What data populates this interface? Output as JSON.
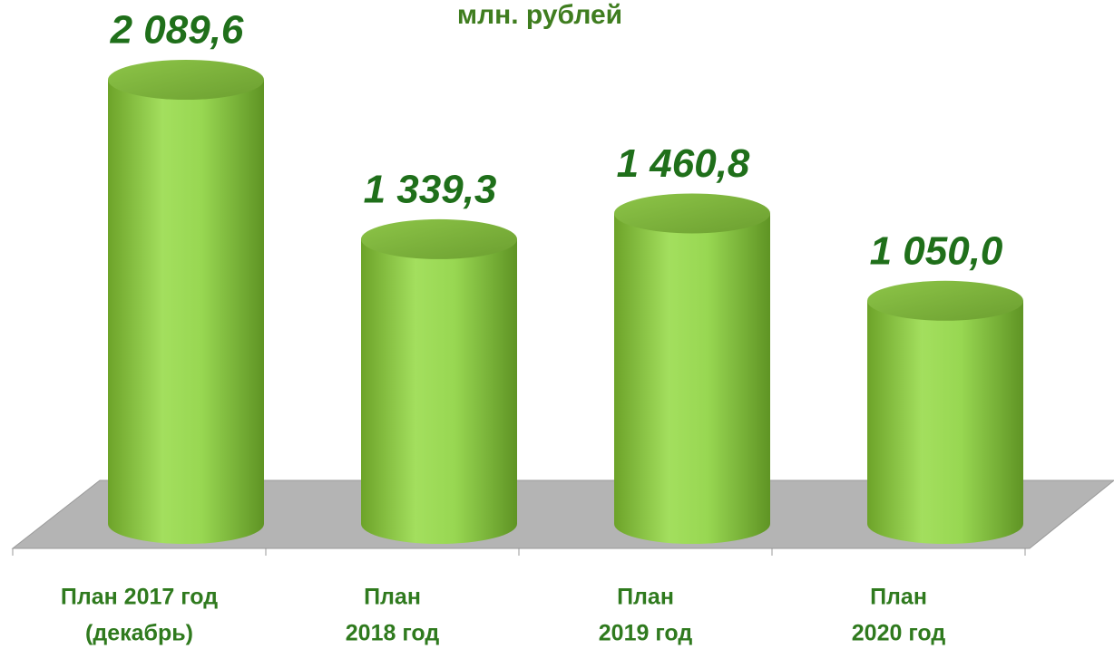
{
  "chart_data": {
    "type": "bar",
    "title": "млн. рублей",
    "categories": [
      [
        "План 2017 год",
        "(декабрь)"
      ],
      [
        "План",
        "2018 год"
      ],
      [
        "План",
        "2019 год"
      ],
      [
        "План",
        "2020 год"
      ]
    ],
    "values": [
      2089.6,
      1339.3,
      1460.8,
      1050.0
    ],
    "value_labels": [
      "2 089,6",
      "1 339,3",
      "1 460,8",
      "1 050,0"
    ],
    "color": "#8fcf45"
  }
}
